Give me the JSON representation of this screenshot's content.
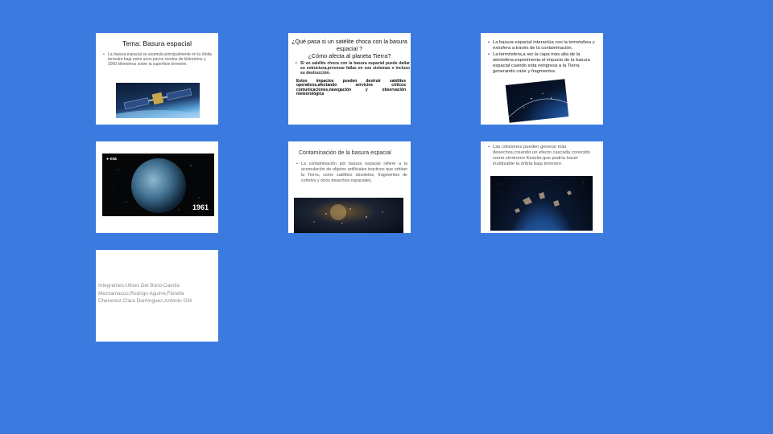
{
  "slides": [
    {
      "title": "Tema:  Basura espacial",
      "bullets": [
        "La basura espacial se acumula principalmente en la órbita terrestre baja entre unos pocos cientos de kilómetros y 2000 kilómetros sobre la superficie terrestre."
      ]
    },
    {
      "title": "¿Qué pasa si un satélite choca con la basura espacial ?\n¿Cómo afecta al planeta Tierra?",
      "bullets": [
        "Si un satélite choca con la basura espacial puede  dañar su estructura,provocar fallas en sus sistemas o incluso su destrucción."
      ],
      "paragraph": "Estos impactos pueden destruir satélites operativos,afectando servicios críticos comunicaciones,navegación y observación meteorológica"
    },
    {
      "bullets": [
        "La basura espacial interactúa con la termósfera y exósfera a través  de la contaminación.",
        "La termósfera,a  ser la capa más alta de la atmósfera,experimenta el impacto de la basura espacial cuando esta reingresa a la Tierra generando calor y fragmentos."
      ]
    },
    {
      "logo": "esa",
      "year": "1961"
    },
    {
      "title": "Contaminación de la basura espacial",
      "bullets": [
        "La contaminación por basura espacial  refiere a la acumulación de objetos artificiales inactivos que orbitan la Tierra, como satélites obsoletos, fragmentos de cohetes y otros desechos espaciales."
      ]
    },
    {
      "bullets": [
        "Las colisiones pueden generar más desechos,creando un efecto cascada conocido como síndrome Kessler,que podría hacer inutilizable la órbita baja terrestre."
      ]
    },
    {
      "text": "Integrantes:Ulises Del Bono,Camila Mezzamacco,Rodrigo Aguirre,Florella Chenevez,Clara Domínguez,Antonio Gilli"
    }
  ],
  "colors": {
    "background": "#3b7be0",
    "slide": "#ffffff"
  }
}
